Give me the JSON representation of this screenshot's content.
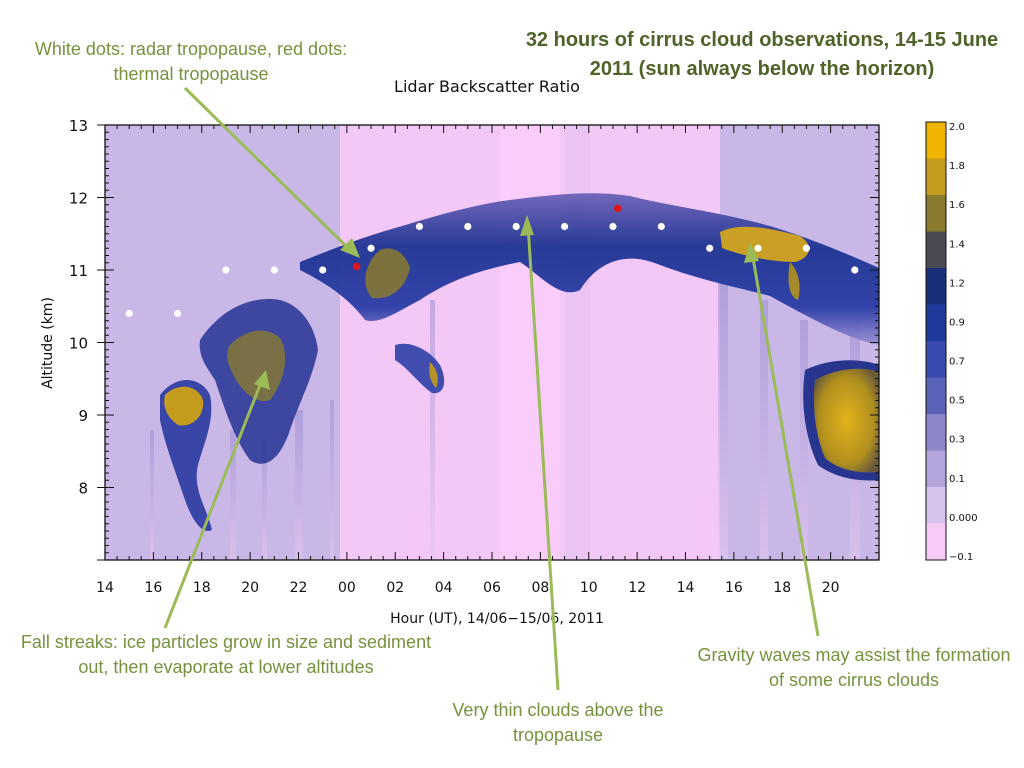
{
  "slide_title": "32 hours of cirrus cloud observations, 14-15 June 2011 (sun always below the horizon)",
  "annotations": {
    "dots": "White dots: radar tropopause, red dots: thermal tropopause",
    "fall_streaks": "Fall streaks: ice particles grow in size and sediment out, then evaporate at lower altitudes",
    "thin_clouds": "Very thin clouds above the tropopause",
    "gravity_waves": "Gravity waves may assist the formation of some  cirrus clouds"
  },
  "colors": {
    "annotation_text": "#76923c",
    "arrow": "#9bbb59",
    "background_low": "#f7c6f7",
    "background_mid": "#c8b6e6",
    "high": "#d6a81f"
  },
  "chart_data": {
    "type": "heatmap",
    "title": "Lidar Backscatter Ratio",
    "xlabel": "Hour (UT), 14/06−15/06, 2011",
    "ylabel": "Altitude (km)",
    "x_start_hour": 14,
    "x_end_hour": 46,
    "xticks": [
      "14",
      "16",
      "18",
      "20",
      "22",
      "00",
      "02",
      "04",
      "06",
      "08",
      "10",
      "12",
      "14",
      "16",
      "18",
      "20"
    ],
    "ylim": [
      7,
      13
    ],
    "yticks": [
      8,
      9,
      10,
      11,
      12,
      13
    ],
    "colorbar": {
      "labels": [
        "2.0",
        "1.8",
        "1.6",
        "1.4",
        "1.2",
        "0.9",
        "0.7",
        "0.5",
        "0.3",
        "0.1",
        "0.000",
        "−0.1"
      ],
      "colors": [
        "#f0b400",
        "#c59d1e",
        "#8a7a2e",
        "#4a4a55",
        "#1a2f7a",
        "#1e3a9c",
        "#3a4bb0",
        "#5a63b8",
        "#8c86c8",
        "#b4a6dc",
        "#d7c3ec",
        "#f8caf8"
      ]
    },
    "radar_tropopause": [
      [
        15,
        10.4
      ],
      [
        17,
        10.4
      ],
      [
        19,
        11.0
      ],
      [
        21,
        11.0
      ],
      [
        23,
        11.0
      ],
      [
        25,
        11.3
      ],
      [
        27,
        11.6
      ],
      [
        29,
        11.6
      ],
      [
        31,
        11.6
      ],
      [
        33,
        11.6
      ],
      [
        35,
        11.6
      ],
      [
        37,
        11.6
      ],
      [
        39,
        11.3
      ],
      [
        41,
        11.3
      ],
      [
        43,
        11.3
      ],
      [
        45,
        11.0
      ]
    ],
    "thermal_tropopause": [
      [
        24.4,
        11.05
      ],
      [
        35.2,
        11.85
      ]
    ]
  }
}
